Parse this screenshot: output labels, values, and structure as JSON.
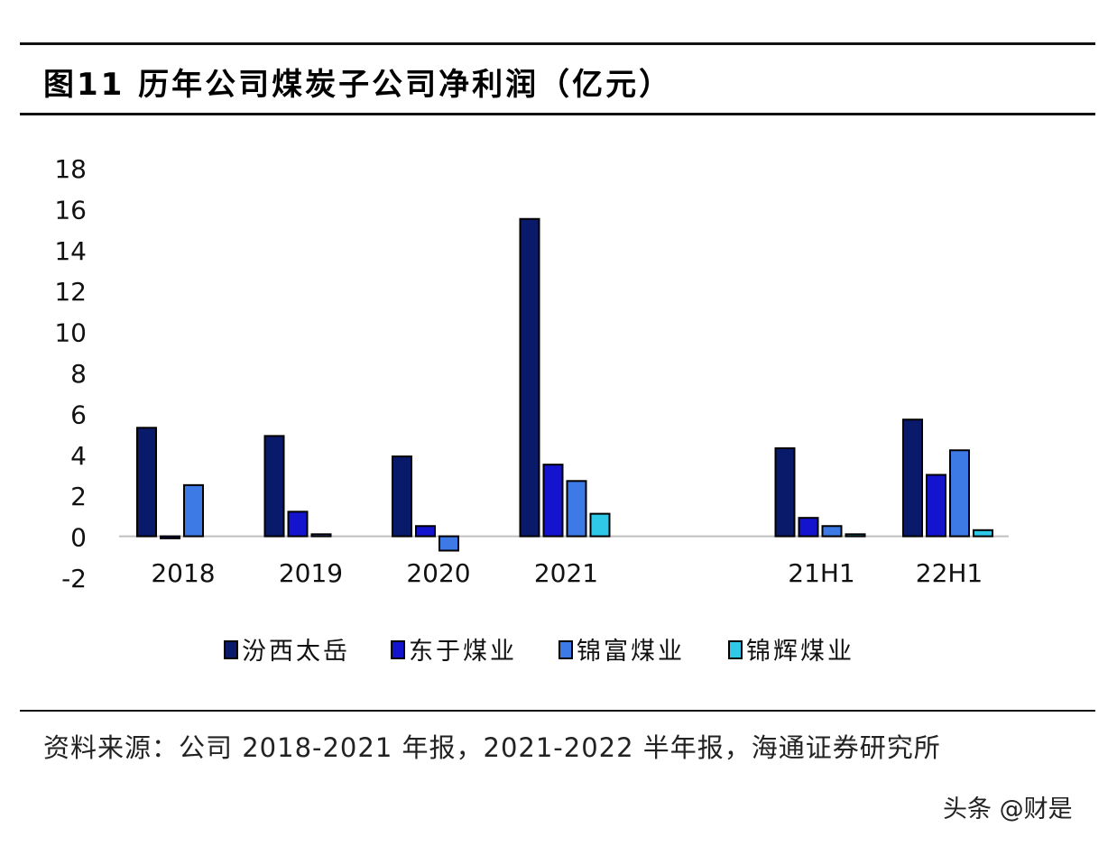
{
  "figure": {
    "title": "图11 历年公司煤炭子公司净利润（亿元）",
    "source": "资料来源：公司 2018-2021 年报，2021-2022 半年报，海通证券研究所",
    "watermark": "头条 @财是"
  },
  "colors": {
    "汾西太岳": "#0a1a6b",
    "东于煤业": "#1414cf",
    "锦富煤业": "#3d7ae6",
    "锦辉煤业": "#30c8e8"
  },
  "chart_data": {
    "type": "bar",
    "categories": [
      "2018",
      "2019",
      "2020",
      "2021",
      "",
      "21H1",
      "22H1"
    ],
    "series": [
      {
        "name": "汾西太岳",
        "values": [
          5.3,
          4.9,
          3.9,
          15.5,
          null,
          4.3,
          5.7
        ]
      },
      {
        "name": "东于煤业",
        "values": [
          -0.1,
          1.2,
          0.5,
          3.5,
          null,
          0.9,
          3.0
        ]
      },
      {
        "name": "锦富煤业",
        "values": [
          2.5,
          0.1,
          -0.7,
          2.7,
          null,
          0.5,
          4.2
        ]
      },
      {
        "name": "锦辉煤业",
        "values": [
          null,
          null,
          null,
          1.1,
          null,
          0.1,
          0.3
        ]
      }
    ],
    "yticks": [
      "18",
      "16",
      "14",
      "12",
      "10",
      "8",
      "6",
      "4",
      "2",
      "0",
      "-2"
    ],
    "ylim": [
      -2,
      18
    ],
    "grid": false,
    "legend_position": "bottom"
  }
}
